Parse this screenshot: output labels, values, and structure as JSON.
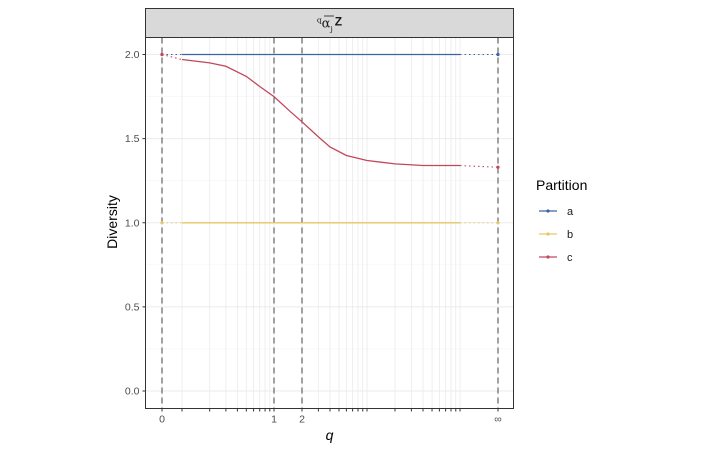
{
  "chart_data": {
    "type": "line",
    "strip": {
      "prefix": "q",
      "main": "α",
      "subscript": "j",
      "suffix": "Z"
    },
    "xlabel": "q",
    "ylabel": "Diversity",
    "ylim": [
      0,
      2
    ],
    "y_ticks": [
      0.0,
      0.5,
      1.0,
      1.5,
      2.0
    ],
    "y_tick_labels": [
      "0.0",
      "0.5",
      "1.0",
      "1.5",
      "2.0"
    ],
    "x_ticks": [
      {
        "q": 0,
        "label": "0"
      },
      {
        "q": 1,
        "label": "1"
      },
      {
        "q": 2,
        "label": "2"
      },
      {
        "q": "inf",
        "label": "∞"
      }
    ],
    "grid": true,
    "vlines_q": [
      0,
      1,
      2,
      "inf"
    ],
    "legend": {
      "title": "Partition",
      "position": "right"
    },
    "series": [
      {
        "name": "a",
        "color": "#3b63a8",
        "points": [
          [
            0.1,
            2.0
          ],
          [
            0.5,
            2.0
          ],
          [
            1,
            2.0
          ],
          [
            2,
            2.0
          ],
          [
            5,
            2.0
          ],
          [
            20,
            2.0
          ],
          [
            100,
            2.0
          ]
        ],
        "q0": 2.0,
        "qinf": 2.0
      },
      {
        "name": "b",
        "color": "#e6c765",
        "points": [
          [
            0.1,
            1.0
          ],
          [
            0.5,
            1.0
          ],
          [
            1,
            1.0
          ],
          [
            2,
            1.0
          ],
          [
            5,
            1.0
          ],
          [
            20,
            1.0
          ],
          [
            100,
            1.0
          ]
        ],
        "q0": 1.0,
        "qinf": 1.0
      },
      {
        "name": "c",
        "color": "#c2475c",
        "points": [
          [
            0.1,
            1.97
          ],
          [
            0.2,
            1.95
          ],
          [
            0.3,
            1.93
          ],
          [
            0.5,
            1.87
          ],
          [
            0.7,
            1.81
          ],
          [
            1,
            1.75
          ],
          [
            1.5,
            1.66
          ],
          [
            2,
            1.6
          ],
          [
            3,
            1.51
          ],
          [
            4,
            1.45
          ],
          [
            6,
            1.4
          ],
          [
            10,
            1.37
          ],
          [
            20,
            1.35
          ],
          [
            40,
            1.34
          ],
          [
            100,
            1.34
          ]
        ],
        "q0": 2.0,
        "qinf": 1.33
      }
    ]
  }
}
